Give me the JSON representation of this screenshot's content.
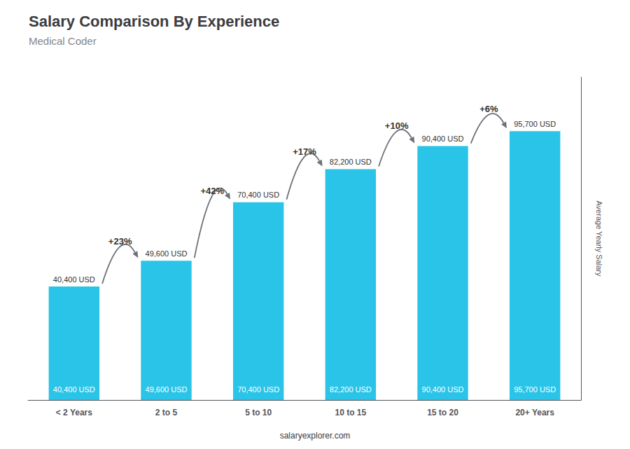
{
  "chart_data": {
    "type": "bar",
    "title": "Salary Comparison By Experience",
    "subtitle": "Medical Coder",
    "categories": [
      "< 2 Years",
      "2 to 5",
      "5 to 10",
      "10 to 15",
      "15 to 20",
      "20+ Years"
    ],
    "values": [
      40400,
      49600,
      70400,
      82200,
      90400,
      95700
    ],
    "value_labels": [
      "40,400 USD",
      "49,600 USD",
      "70,400 USD",
      "82,200 USD",
      "90,400 USD",
      "95,700 USD"
    ],
    "data_labels": true,
    "color": "#29C4E8",
    "ylim": [
      0,
      115000
    ],
    "yticks": [],
    "ylabel": "Average Yearly Salary",
    "annotations": [
      "+23%",
      "+42%",
      "+17%",
      "+10%",
      "+6%"
    ],
    "footer": "salaryexplorer.com",
    "tick_labels": "x",
    "grid": false
  }
}
